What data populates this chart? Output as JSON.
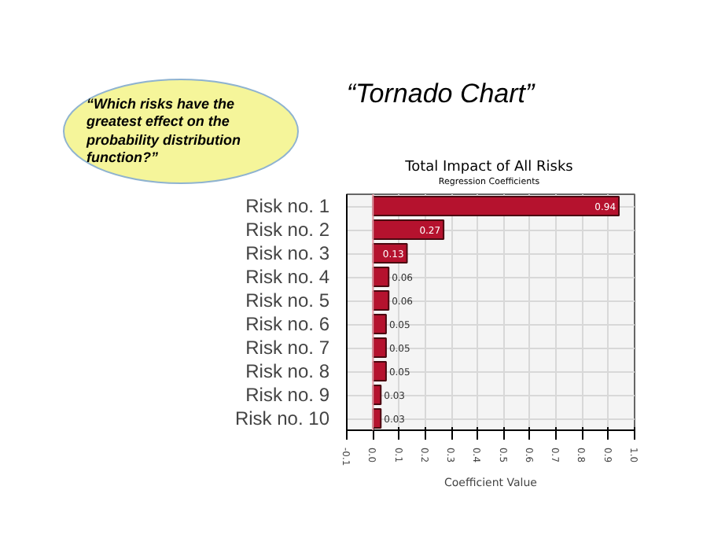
{
  "chart_data": {
    "type": "bar",
    "orientation": "horizontal",
    "title": "Total Impact of All Risks",
    "subtitle": "Regression Coefficients",
    "xlabel": "Coefficient Value",
    "annotations": [
      "“Tornado Chart”",
      "“Which risks have the greatest effect on the probability distribution function?”"
    ],
    "categories": [
      "Risk no. 1",
      "Risk no. 2",
      "Risk no. 3",
      "Risk no. 4",
      "Risk no. 5",
      "Risk no. 6",
      "Risk no. 7",
      "Risk no. 8",
      "Risk no. 9",
      "Risk no. 10"
    ],
    "values": [
      0.94,
      0.27,
      0.13,
      0.06,
      0.06,
      0.05,
      0.05,
      0.05,
      0.03,
      0.03
    ],
    "color": "#b5122e",
    "data_labels": true,
    "xlim": [
      -0.1,
      1.0
    ],
    "xticks": [
      {
        "value": -0.1,
        "label": "-0.1"
      },
      {
        "value": 0,
        "label": "0.0"
      },
      {
        "value": 0.1,
        "label": "0.1"
      },
      {
        "value": 0.2,
        "label": "0.2"
      },
      {
        "value": 0.3,
        "label": "0.3"
      },
      {
        "value": 0.4,
        "label": "0.4"
      },
      {
        "value": 0.5,
        "label": "0.5"
      },
      {
        "value": 0.6,
        "label": "0.6"
      },
      {
        "value": 0.7,
        "label": "0.7"
      },
      {
        "value": 0.8,
        "label": "0.8"
      },
      {
        "value": 0.9,
        "label": "0.9"
      },
      {
        "value": 1.0,
        "label": "1.0"
      }
    ],
    "ref_lines": [
      {
        "axis": "x",
        "value": 0,
        "color": "#e89aa6"
      }
    ],
    "grid": true
  }
}
